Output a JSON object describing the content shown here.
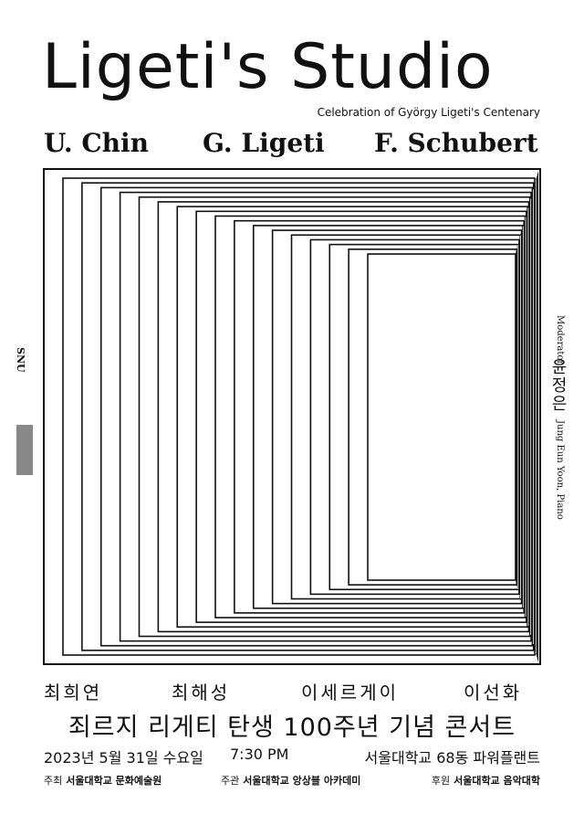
{
  "title": "Ligeti's Studio",
  "subtitle": "Celebration of György Ligeti's Centenary",
  "composers": [
    "U. Chin",
    "G. Ligeti",
    "F. Schubert"
  ],
  "side_logo": "SNU",
  "moderator": {
    "role": "Moderator",
    "name": "윤정은",
    "detail": "Jung Eun Yoon, Piano"
  },
  "performers": [
    "최희연",
    "최해성",
    "이세르게이",
    "이선화"
  ],
  "headline": "죄르지 리게티 탄생 100주년 기념 콘서트",
  "schedule": {
    "date": "2023년 5월 31일 수요일",
    "time": "7:30 PM",
    "venue": "서울대학교 68동 파워플랜트"
  },
  "credits": [
    {
      "role": "주최",
      "org": "서울대학교 문화예술원"
    },
    {
      "role": "주관",
      "org": "서울대학교 앙상블 아카데미"
    },
    {
      "role": "후원",
      "org": "서울대학교 음악대학"
    }
  ]
}
